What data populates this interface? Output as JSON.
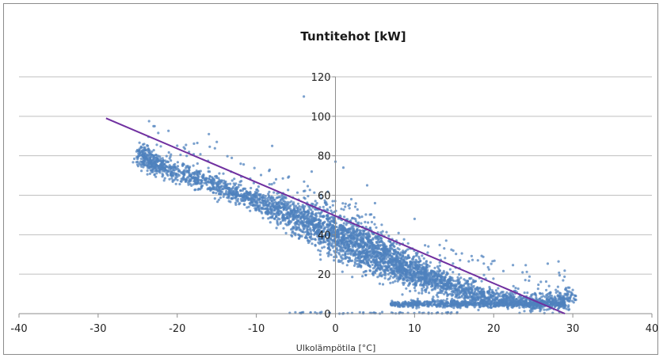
{
  "chart_data": {
    "type": "scatter",
    "title": "Tuntitehot [kW]",
    "xlabel": "Ulkolämpötila [°C]",
    "ylabel": "",
    "xlim": [
      -40,
      40
    ],
    "ylim": [
      0,
      120
    ],
    "x_ticks": [
      -40,
      -30,
      -20,
      -10,
      0,
      10,
      20,
      30,
      40
    ],
    "y_ticks": [
      0,
      20,
      40,
      60,
      80,
      100,
      120
    ],
    "grid": "horizontal",
    "legend": "none",
    "colors": {
      "points": "#4f81bd",
      "line": "#7030a0",
      "grid": "#bfbfbf"
    },
    "series": [
      {
        "kind": "points",
        "cloud": [
          {
            "x": -25,
            "y": 81
          },
          {
            "x": -24,
            "y": 79
          },
          {
            "x": -23,
            "y": 76
          },
          {
            "x": -22,
            "y": 74
          },
          {
            "x": -20,
            "y": 72
          },
          {
            "x": -18,
            "y": 69
          },
          {
            "x": -16,
            "y": 66
          },
          {
            "x": -14,
            "y": 63
          },
          {
            "x": -12,
            "y": 60
          },
          {
            "x": -10,
            "y": 58
          },
          {
            "x": -8,
            "y": 54
          },
          {
            "x": -6,
            "y": 51
          },
          {
            "x": -4,
            "y": 47
          },
          {
            "x": -2,
            "y": 44
          },
          {
            "x": 0,
            "y": 40
          },
          {
            "x": 2,
            "y": 37
          },
          {
            "x": 4,
            "y": 33
          },
          {
            "x": 6,
            "y": 29
          },
          {
            "x": 8,
            "y": 25
          },
          {
            "x": 10,
            "y": 21
          },
          {
            "x": 12,
            "y": 18
          },
          {
            "x": 14,
            "y": 15
          },
          {
            "x": 16,
            "y": 12
          },
          {
            "x": 18,
            "y": 10
          },
          {
            "x": 20,
            "y": 8
          },
          {
            "x": 22,
            "y": 7
          },
          {
            "x": 24,
            "y": 6
          },
          {
            "x": 26,
            "y": 6
          },
          {
            "x": 28,
            "y": 7
          },
          {
            "x": 30,
            "y": 8
          }
        ],
        "low_cluster": {
          "x_from": 7,
          "x_to": 29,
          "y": 5
        },
        "outliers": [
          {
            "x": -23,
            "y": 95
          },
          {
            "x": -16,
            "y": 91
          },
          {
            "x": -15,
            "y": 87
          },
          {
            "x": -8,
            "y": 85
          },
          {
            "x": -4,
            "y": 110
          },
          {
            "x": -3,
            "y": 72
          },
          {
            "x": 0,
            "y": 77
          },
          {
            "x": 1,
            "y": 74
          },
          {
            "x": 2,
            "y": 58
          },
          {
            "x": 4,
            "y": 65
          },
          {
            "x": 5,
            "y": 56
          },
          {
            "x": 10,
            "y": 48
          },
          {
            "x": 14,
            "y": 37
          },
          {
            "x": 18,
            "y": 27
          },
          {
            "x": 24,
            "y": 17
          },
          {
            "x": 27,
            "y": 14
          },
          {
            "x": 30,
            "y": 12
          }
        ]
      },
      {
        "kind": "line",
        "points": [
          {
            "x": -29,
            "y": 99
          },
          {
            "x": 29,
            "y": 0
          }
        ]
      }
    ]
  }
}
